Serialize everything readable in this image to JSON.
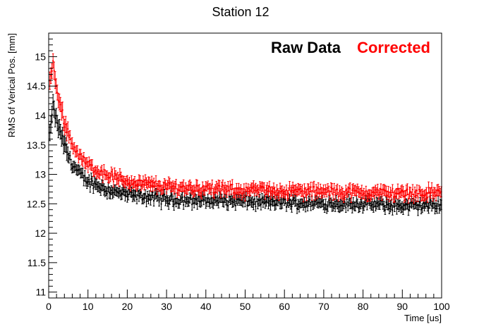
{
  "chart_data": {
    "type": "scatter",
    "title": "Station 12",
    "xlabel": "Time [us]",
    "ylabel": "RMS of Verical Pos. [mm]",
    "xlim": [
      0,
      100
    ],
    "ylim": [
      10.9,
      15.4
    ],
    "x_ticks": [
      0,
      10,
      20,
      30,
      40,
      50,
      60,
      70,
      80,
      90,
      100
    ],
    "y_ticks": [
      11,
      11.5,
      12,
      12.5,
      13,
      13.5,
      14,
      14.5,
      15
    ],
    "x_tick_labels": [
      "0",
      "10",
      "20",
      "30",
      "40",
      "50",
      "60",
      "70",
      "80",
      "90",
      "100"
    ],
    "y_tick_labels": [
      "11",
      "11.5",
      "12",
      "12.5",
      "13",
      "13.5",
      "14",
      "14.5",
      "15"
    ],
    "legend_position": "top-right",
    "grid": false,
    "series": [
      {
        "name": "Raw Data",
        "color": "#000000",
        "error_bars": true,
        "points": [
          [
            0.5,
            13.7
          ],
          [
            1,
            14.2
          ],
          [
            2,
            13.9
          ],
          [
            3,
            13.7
          ],
          [
            4,
            13.5
          ],
          [
            5,
            13.32
          ],
          [
            6,
            13.18
          ],
          [
            7,
            13.08
          ],
          [
            8,
            13.0
          ],
          [
            9,
            12.93
          ],
          [
            10,
            12.88
          ],
          [
            12,
            12.83
          ],
          [
            14,
            12.77
          ],
          [
            16,
            12.72
          ],
          [
            18,
            12.68
          ],
          [
            20,
            12.66
          ],
          [
            25,
            12.62
          ],
          [
            30,
            12.58
          ],
          [
            35,
            12.57
          ],
          [
            40,
            12.56
          ],
          [
            45,
            12.55
          ],
          [
            50,
            12.54
          ],
          [
            55,
            12.53
          ],
          [
            60,
            12.53
          ],
          [
            65,
            12.51
          ],
          [
            70,
            12.51
          ],
          [
            75,
            12.5
          ],
          [
            80,
            12.5
          ],
          [
            85,
            12.48
          ],
          [
            90,
            12.46
          ],
          [
            95,
            12.47
          ],
          [
            100,
            12.48
          ]
        ]
      },
      {
        "name": "Corrected",
        "color": "#ff0000",
        "error_bars": true,
        "points": [
          [
            0.5,
            14.6
          ],
          [
            1,
            14.9
          ],
          [
            2,
            14.45
          ],
          [
            3,
            14.15
          ],
          [
            4,
            13.9
          ],
          [
            5,
            13.7
          ],
          [
            6,
            13.52
          ],
          [
            7,
            13.4
          ],
          [
            8,
            13.3
          ],
          [
            9,
            13.22
          ],
          [
            10,
            13.16
          ],
          [
            12,
            13.08
          ],
          [
            14,
            13.02
          ],
          [
            16,
            12.97
          ],
          [
            18,
            12.92
          ],
          [
            20,
            12.88
          ],
          [
            25,
            12.83
          ],
          [
            30,
            12.79
          ],
          [
            35,
            12.77
          ],
          [
            40,
            12.76
          ],
          [
            45,
            12.74
          ],
          [
            50,
            12.73
          ],
          [
            55,
            12.73
          ],
          [
            60,
            12.72
          ],
          [
            65,
            12.71
          ],
          [
            70,
            12.71
          ],
          [
            75,
            12.7
          ],
          [
            80,
            12.69
          ],
          [
            85,
            12.69
          ],
          [
            90,
            12.68
          ],
          [
            95,
            12.68
          ],
          [
            100,
            12.7
          ]
        ]
      }
    ]
  }
}
